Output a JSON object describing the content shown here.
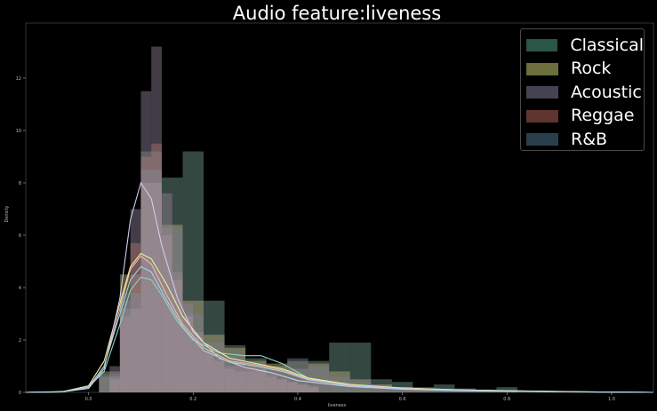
{
  "chart_data": {
    "type": "histogram-kde",
    "title": "Audio feature:liveness",
    "xlabel": "liveness",
    "ylabel": "Density",
    "xlim": [
      -0.12,
      1.08
    ],
    "ylim": [
      0,
      14.1
    ],
    "x_ticks": [
      0.0,
      0.2,
      0.4,
      0.6,
      0.8,
      1.0
    ],
    "x_tick_labels": [
      "0.0",
      "0.2",
      "0.4",
      "0.6",
      "0.8",
      "1.0"
    ],
    "y_ticks": [
      0,
      2,
      4,
      6,
      8,
      10,
      12
    ],
    "y_tick_labels": [
      "0",
      "2",
      "4",
      "6",
      "8",
      "10",
      "12"
    ],
    "grid": false,
    "legend_position": "top-right",
    "series": [
      {
        "name": "Classical",
        "color": "#2f5e51",
        "line_color": "#8fd3c1",
        "bin_width": 0.04,
        "bins_start": 0.02,
        "bar_heights": [
          0.6,
          3.2,
          9.2,
          8.2,
          9.2,
          3.5,
          1.8,
          1.3,
          1.0,
          0.9,
          1.2,
          1.9,
          1.9,
          0.5,
          0.4,
          0.2,
          0.3,
          0.15,
          0.1,
          0.2
        ],
        "kde": [
          [
            -0.12,
            0.0
          ],
          [
            -0.05,
            0.02
          ],
          [
            0.0,
            0.2
          ],
          [
            0.03,
            0.8
          ],
          [
            0.06,
            2.6
          ],
          [
            0.08,
            3.9
          ],
          [
            0.1,
            4.4
          ],
          [
            0.12,
            4.3
          ],
          [
            0.14,
            3.7
          ],
          [
            0.17,
            2.7
          ],
          [
            0.2,
            2.0
          ],
          [
            0.25,
            1.5
          ],
          [
            0.3,
            1.4
          ],
          [
            0.33,
            1.4
          ],
          [
            0.37,
            1.1
          ],
          [
            0.42,
            0.55
          ],
          [
            0.48,
            0.3
          ],
          [
            0.55,
            0.2
          ],
          [
            0.65,
            0.13
          ],
          [
            0.75,
            0.08
          ],
          [
            0.85,
            0.05
          ],
          [
            0.95,
            0.02
          ],
          [
            1.08,
            0.0
          ]
        ]
      },
      {
        "name": "Rock",
        "color": "#787a44",
        "line_color": "#ecf09a",
        "bin_width": 0.04,
        "bins_start": 0.02,
        "bar_heights": [
          0.8,
          4.5,
          8.0,
          6.4,
          3.5,
          2.2,
          1.7,
          1.2,
          1.1,
          1.2,
          1.1,
          0.8,
          0.5,
          0.3,
          0.2,
          0.15,
          0.1,
          0.1,
          0.05,
          0.05
        ],
        "kde": [
          [
            -0.12,
            0.0
          ],
          [
            -0.05,
            0.03
          ],
          [
            0.0,
            0.25
          ],
          [
            0.03,
            1.2
          ],
          [
            0.06,
            3.4
          ],
          [
            0.08,
            4.8
          ],
          [
            0.1,
            5.3
          ],
          [
            0.12,
            5.1
          ],
          [
            0.15,
            4.1
          ],
          [
            0.18,
            2.9
          ],
          [
            0.22,
            1.9
          ],
          [
            0.27,
            1.3
          ],
          [
            0.32,
            1.1
          ],
          [
            0.37,
            0.9
          ],
          [
            0.42,
            0.55
          ],
          [
            0.5,
            0.3
          ],
          [
            0.6,
            0.17
          ],
          [
            0.7,
            0.1
          ],
          [
            0.8,
            0.06
          ],
          [
            0.9,
            0.03
          ],
          [
            1.0,
            0.01
          ],
          [
            1.08,
            0.0
          ]
        ]
      },
      {
        "name": "Acoustic",
        "color": "#4d4a5c",
        "line_color": "#d2ccef",
        "bin_width": 0.02,
        "bins_start": 0.04,
        "bar_heights": [
          1.0,
          3.5,
          7.0,
          11.5,
          13.2,
          7.6,
          4.6,
          3.4,
          2.3,
          1.6,
          1.2,
          0.9,
          0.8,
          0.8,
          0.9,
          0.7,
          0.5,
          0.4,
          0.3,
          0.25
        ],
        "kde": [
          [
            -0.12,
            0.0
          ],
          [
            -0.05,
            0.02
          ],
          [
            0.0,
            0.15
          ],
          [
            0.03,
            0.9
          ],
          [
            0.06,
            3.6
          ],
          [
            0.08,
            6.6
          ],
          [
            0.1,
            8.0
          ],
          [
            0.12,
            7.4
          ],
          [
            0.14,
            5.6
          ],
          [
            0.17,
            3.6
          ],
          [
            0.2,
            2.3
          ],
          [
            0.25,
            1.3
          ],
          [
            0.3,
            0.95
          ],
          [
            0.35,
            0.75
          ],
          [
            0.4,
            0.45
          ],
          [
            0.5,
            0.22
          ],
          [
            0.6,
            0.12
          ],
          [
            0.7,
            0.07
          ],
          [
            0.8,
            0.04
          ],
          [
            0.9,
            0.02
          ],
          [
            1.0,
            0.01
          ],
          [
            1.08,
            0.0
          ]
        ]
      },
      {
        "name": "Reggae",
        "color": "#6a3a34",
        "line_color": "#f2b9a8",
        "bin_width": 0.02,
        "bins_start": 0.04,
        "bar_heights": [
          0.5,
          2.9,
          5.7,
          9.0,
          9.5,
          6.0,
          4.3,
          2.9,
          2.1,
          1.6,
          1.3,
          1.0,
          1.1,
          1.0,
          0.9,
          0.6,
          0.5,
          0.4,
          0.3,
          0.2
        ],
        "kde": [
          [
            -0.12,
            0.0
          ],
          [
            -0.05,
            0.02
          ],
          [
            0.0,
            0.2
          ],
          [
            0.03,
            1.0
          ],
          [
            0.06,
            3.2
          ],
          [
            0.08,
            4.7
          ],
          [
            0.1,
            5.2
          ],
          [
            0.12,
            4.9
          ],
          [
            0.15,
            3.7
          ],
          [
            0.18,
            2.6
          ],
          [
            0.22,
            1.7
          ],
          [
            0.27,
            1.2
          ],
          [
            0.32,
            1.05
          ],
          [
            0.37,
            0.85
          ],
          [
            0.42,
            0.5
          ],
          [
            0.5,
            0.28
          ],
          [
            0.6,
            0.15
          ],
          [
            0.7,
            0.09
          ],
          [
            0.8,
            0.05
          ],
          [
            0.9,
            0.03
          ],
          [
            1.0,
            0.01
          ],
          [
            1.08,
            0.0
          ]
        ]
      },
      {
        "name": "R&B",
        "color": "#2e4654",
        "line_color": "#a6d3e8",
        "bin_width": 0.04,
        "bins_start": 0.02,
        "bar_heights": [
          0.7,
          3.8,
          8.5,
          6.3,
          3.0,
          1.9,
          1.4,
          1.0,
          0.9,
          1.3,
          1.0,
          0.6,
          0.4,
          0.3,
          0.2,
          0.15,
          0.1,
          0.1,
          0.05,
          0.05
        ],
        "kde": [
          [
            -0.12,
            0.0
          ],
          [
            -0.05,
            0.02
          ],
          [
            0.0,
            0.2
          ],
          [
            0.03,
            1.0
          ],
          [
            0.06,
            3.0
          ],
          [
            0.08,
            4.3
          ],
          [
            0.1,
            4.8
          ],
          [
            0.12,
            4.6
          ],
          [
            0.15,
            3.5
          ],
          [
            0.18,
            2.5
          ],
          [
            0.22,
            1.6
          ],
          [
            0.27,
            1.15
          ],
          [
            0.32,
            1.0
          ],
          [
            0.37,
            0.8
          ],
          [
            0.42,
            0.48
          ],
          [
            0.5,
            0.26
          ],
          [
            0.6,
            0.14
          ],
          [
            0.7,
            0.08
          ],
          [
            0.8,
            0.05
          ],
          [
            0.9,
            0.02
          ],
          [
            1.0,
            0.01
          ],
          [
            1.08,
            0.0
          ]
        ]
      }
    ]
  }
}
